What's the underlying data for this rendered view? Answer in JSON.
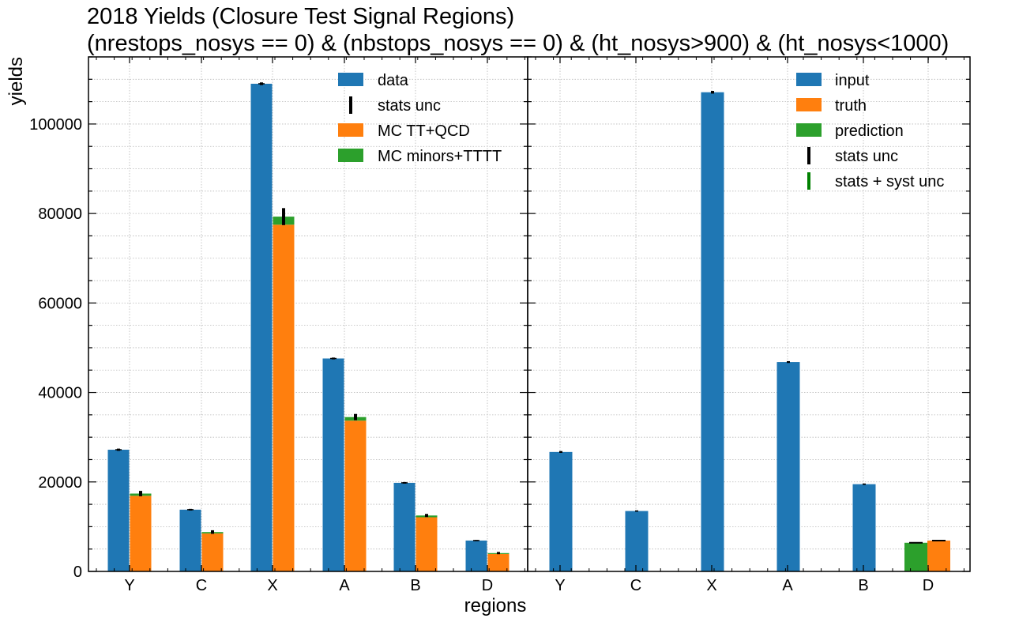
{
  "title_line1": "2018 Yields (Closure Test Signal Regions)",
  "title_line2": "(nrestops_nosys == 0) & (nbstops_nosys == 0) & (ht_nosys>900) & (ht_nosys<1000)",
  "colors": {
    "blue": "#1f77b4",
    "orange": "#ff7f0e",
    "green": "#2ca02c",
    "syst_green": "#008000",
    "stat_black": "#000000"
  },
  "chart_data": [
    {
      "type": "bar",
      "panel": "left",
      "categories": [
        "Y",
        "C",
        "X",
        "A",
        "B",
        "D"
      ],
      "xlabel": "regions",
      "ylabel": "yields",
      "ylim": [
        0,
        115000
      ],
      "yticks": [
        0,
        20000,
        40000,
        60000,
        80000,
        100000
      ],
      "grid": true,
      "legend_position": "top-right",
      "legend": [
        "data",
        "stats unc",
        "MC TT+QCD",
        "MC minors+TTTT"
      ],
      "series": [
        {
          "name": "data",
          "color": "blue",
          "values": [
            27200,
            13800,
            109000,
            47600,
            19800,
            6900
          ],
          "stat_unc": [
            250,
            180,
            300,
            200,
            180,
            120
          ]
        },
        {
          "name": "MC TT+QCD",
          "color": "orange",
          "values": [
            16900,
            8500,
            77500,
            33700,
            12100,
            3900
          ],
          "stacked_base": true
        },
        {
          "name": "MC minors+TTTT",
          "color": "green",
          "values": [
            500,
            300,
            1800,
            800,
            400,
            200
          ],
          "stacked_on": "MC TT+QCD",
          "stat_unc": [
            600,
            400,
            1900,
            700,
            350,
            250
          ]
        }
      ]
    },
    {
      "type": "bar",
      "panel": "right",
      "categories": [
        "Y",
        "C",
        "X",
        "A",
        "B",
        "D"
      ],
      "ylim": [
        0,
        115000
      ],
      "grid": true,
      "legend_position": "top-right",
      "legend": [
        "input",
        "truth",
        "prediction",
        "stats unc",
        "stats + syst unc"
      ],
      "series": [
        {
          "name": "input",
          "color": "blue",
          "values": [
            26700,
            13500,
            107100,
            46800,
            19500,
            null
          ],
          "stat_unc": [
            200,
            150,
            300,
            200,
            150,
            null
          ]
        },
        {
          "name": "prediction",
          "color": "green",
          "values": [
            null,
            null,
            null,
            null,
            null,
            6400
          ],
          "stat_unc": [
            null,
            null,
            null,
            null,
            null,
            100
          ]
        },
        {
          "name": "truth",
          "color": "orange",
          "values": [
            null,
            null,
            null,
            null,
            null,
            6900
          ],
          "stat_unc": [
            null,
            null,
            null,
            null,
            null,
            100
          ]
        }
      ]
    }
  ]
}
